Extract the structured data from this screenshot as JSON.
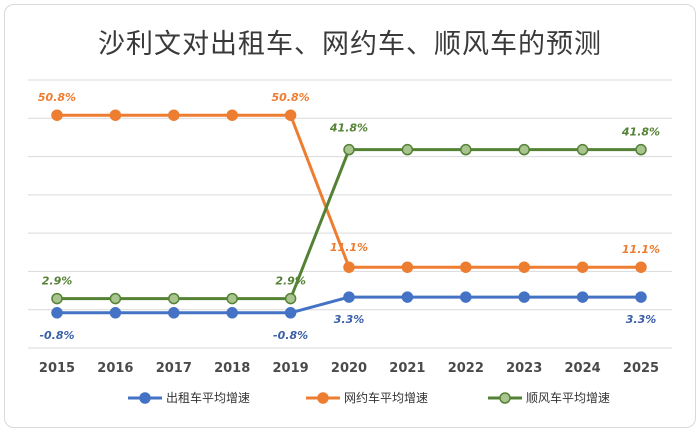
{
  "chart_data": {
    "type": "line",
    "title": "沙利文对出租车、网约车、顺风车的预测",
    "categories": [
      "2015",
      "2016",
      "2017",
      "2018",
      "2019",
      "2020",
      "2021",
      "2022",
      "2023",
      "2024",
      "2025"
    ],
    "series": [
      {
        "name": "出租车平均增速",
        "color": "#4472c4",
        "values": [
          -0.8,
          -0.8,
          -0.8,
          -0.8,
          -0.8,
          3.3,
          3.3,
          3.3,
          3.3,
          3.3,
          3.3
        ],
        "labels": [
          {
            "index": 0,
            "text": "-0.8%"
          },
          {
            "index": 4,
            "text": "-0.8%"
          },
          {
            "index": 5,
            "text": "3.3%"
          },
          {
            "index": 10,
            "text": "3.3%"
          }
        ]
      },
      {
        "name": "网约车平均增速",
        "color": "#ed7d31",
        "values": [
          50.8,
          50.8,
          50.8,
          50.8,
          50.8,
          11.1,
          11.1,
          11.1,
          11.1,
          11.1,
          11.1
        ],
        "labels": [
          {
            "index": 0,
            "text": "50.8%"
          },
          {
            "index": 4,
            "text": "50.8%"
          },
          {
            "index": 5,
            "text": "11.1%"
          },
          {
            "index": 10,
            "text": "11.1%"
          }
        ]
      },
      {
        "name": "顺风车平均增速",
        "color": "#548235",
        "values": [
          2.9,
          2.9,
          2.9,
          2.9,
          2.9,
          41.8,
          41.8,
          41.8,
          41.8,
          41.8,
          41.8
        ],
        "labels": [
          {
            "index": 0,
            "text": "2.9%"
          },
          {
            "index": 4,
            "text": "2.9%"
          },
          {
            "index": 5,
            "text": "41.8%"
          },
          {
            "index": 10,
            "text": "41.8%"
          }
        ]
      }
    ],
    "ylim": [
      -10,
      60
    ],
    "grid": true,
    "legend": "bottom"
  }
}
